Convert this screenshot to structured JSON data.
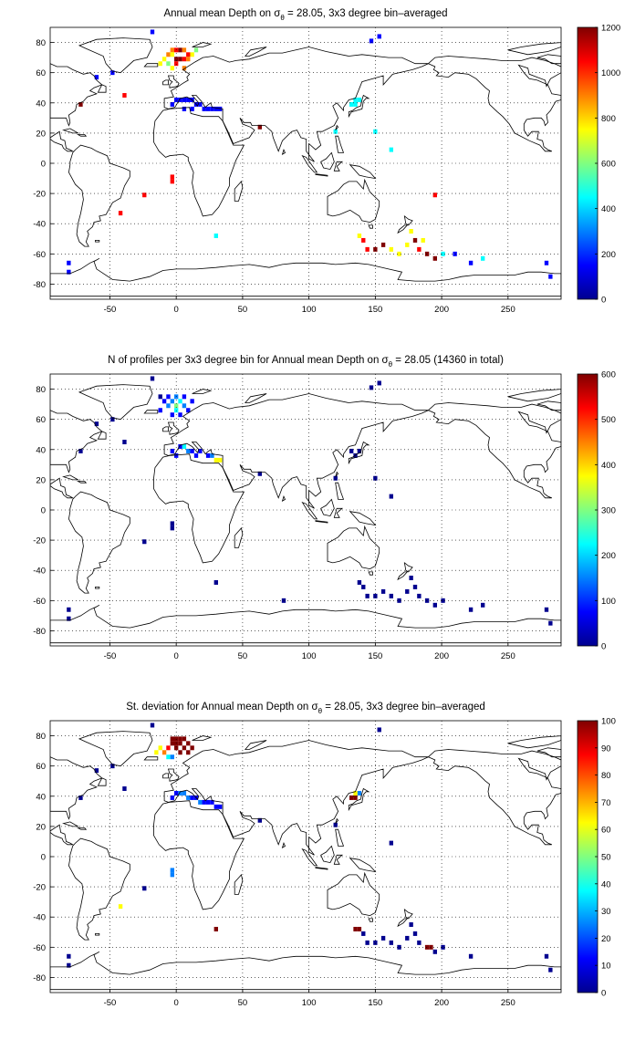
{
  "colormap": [
    "#00008f",
    "#0000ff",
    "#0080ff",
    "#00ffff",
    "#80ff80",
    "#ffff00",
    "#ff8000",
    "#ff0000",
    "#800000"
  ],
  "land_color": "#ffffff",
  "coast_color": "#000000",
  "shared_axes": {
    "xlim": [
      -95,
      290
    ],
    "ylim": [
      -90,
      90
    ],
    "xticks": [
      -50,
      0,
      50,
      100,
      150,
      200,
      250
    ],
    "yticks": [
      -80,
      -60,
      -40,
      -20,
      0,
      20,
      40,
      60,
      80
    ],
    "grid": "dotted"
  },
  "chart_data": [
    {
      "type": "heatmap",
      "title": "Annual mean Depth on σθ = 28.05, 3x3 degree bin–averaged",
      "title_parts": [
        "Annual mean Depth on ",
        "σ",
        "θ",
        " = 28.05, 3x3 degree bin–averaged"
      ],
      "clim": [
        0,
        1200
      ],
      "colorbar_ticks": [
        0,
        200,
        400,
        600,
        800,
        1000,
        1200
      ],
      "cells": [
        {
          "lon": -3,
          "lat": 75,
          "v": 950
        },
        {
          "lon": 0,
          "lat": 75,
          "v": 1100
        },
        {
          "lon": 3,
          "lat": 75,
          "v": 1150
        },
        {
          "lon": 6,
          "lat": 75,
          "v": 900
        },
        {
          "lon": 9,
          "lat": 72,
          "v": 1000
        },
        {
          "lon": -6,
          "lat": 72,
          "v": 850
        },
        {
          "lon": -3,
          "lat": 72,
          "v": 700
        },
        {
          "lon": 0,
          "lat": 69,
          "v": 1200
        },
        {
          "lon": 3,
          "lat": 69,
          "v": 1200
        },
        {
          "lon": 6,
          "lat": 69,
          "v": 1100
        },
        {
          "lon": 9,
          "lat": 69,
          "v": 900
        },
        {
          "lon": -9,
          "lat": 69,
          "v": 750
        },
        {
          "lon": -12,
          "lat": 66,
          "v": 800
        },
        {
          "lon": -6,
          "lat": 66,
          "v": 650
        },
        {
          "lon": 0,
          "lat": 66,
          "v": 1000
        },
        {
          "lon": 6,
          "lat": 63,
          "v": 850
        },
        {
          "lon": -3,
          "lat": 63,
          "v": 700
        },
        {
          "lon": 12,
          "lat": 72,
          "v": 800
        },
        {
          "lon": 15,
          "lat": 75,
          "v": 650
        },
        {
          "lon": 0,
          "lat": 42,
          "v": 100
        },
        {
          "lon": 3,
          "lat": 42,
          "v": 100
        },
        {
          "lon": 6,
          "lat": 42,
          "v": 120
        },
        {
          "lon": 9,
          "lat": 42,
          "v": 100
        },
        {
          "lon": 12,
          "lat": 42,
          "v": 100
        },
        {
          "lon": 15,
          "lat": 39,
          "v": 100
        },
        {
          "lon": 18,
          "lat": 39,
          "v": 110
        },
        {
          "lon": 21,
          "lat": 36,
          "v": 100
        },
        {
          "lon": 24,
          "lat": 36,
          "v": 100
        },
        {
          "lon": 27,
          "lat": 36,
          "v": 100
        },
        {
          "lon": 30,
          "lat": 36,
          "v": 100
        },
        {
          "lon": 33,
          "lat": 36,
          "v": 100
        },
        {
          "lon": -3,
          "lat": 39,
          "v": 100
        },
        {
          "lon": 6,
          "lat": 36,
          "v": 100
        },
        {
          "lon": 12,
          "lat": 36,
          "v": 100
        },
        {
          "lon": 132,
          "lat": 39,
          "v": 380
        },
        {
          "lon": 135,
          "lat": 39,
          "v": 400
        },
        {
          "lon": 138,
          "lat": 42,
          "v": 380
        },
        {
          "lon": 135,
          "lat": 42,
          "v": 400
        },
        {
          "lon": -48,
          "lat": 60,
          "v": 100
        },
        {
          "lon": -60,
          "lat": 57,
          "v": 100
        },
        {
          "lon": -72,
          "lat": 39,
          "v": 1150
        },
        {
          "lon": -39,
          "lat": 45,
          "v": 1100
        },
        {
          "lon": 63,
          "lat": 24,
          "v": 1150
        },
        {
          "lon": 153,
          "lat": 84,
          "v": 100
        },
        {
          "lon": 147,
          "lat": 81,
          "v": 100
        },
        {
          "lon": -18,
          "lat": 87,
          "v": 100
        },
        {
          "lon": 120,
          "lat": 21,
          "v": 500
        },
        {
          "lon": 150,
          "lat": 21,
          "v": 500
        },
        {
          "lon": 162,
          "lat": 9,
          "v": 400
        },
        {
          "lon": -3,
          "lat": -9,
          "v": 1100
        },
        {
          "lon": -3,
          "lat": -12,
          "v": 1100
        },
        {
          "lon": -24,
          "lat": -21,
          "v": 1100
        },
        {
          "lon": -42,
          "lat": -33,
          "v": 1100
        },
        {
          "lon": 30,
          "lat": -48,
          "v": 500
        },
        {
          "lon": 195,
          "lat": -21,
          "v": 1100
        },
        {
          "lon": 138,
          "lat": -48,
          "v": 700
        },
        {
          "lon": 141,
          "lat": -51,
          "v": 1000
        },
        {
          "lon": 144,
          "lat": -57,
          "v": 1100
        },
        {
          "lon": 150,
          "lat": -57,
          "v": 1150
        },
        {
          "lon": 156,
          "lat": -54,
          "v": 1200
        },
        {
          "lon": 162,
          "lat": -57,
          "v": 800
        },
        {
          "lon": 168,
          "lat": -60,
          "v": 750
        },
        {
          "lon": 174,
          "lat": -54,
          "v": 700
        },
        {
          "lon": 180,
          "lat": -51,
          "v": 1150
        },
        {
          "lon": 183,
          "lat": -57,
          "v": 1100
        },
        {
          "lon": 189,
          "lat": -60,
          "v": 1200
        },
        {
          "lon": 195,
          "lat": -63,
          "v": 1150
        },
        {
          "lon": 201,
          "lat": -60,
          "v": 400
        },
        {
          "lon": 210,
          "lat": -60,
          "v": 100
        },
        {
          "lon": 222,
          "lat": -66,
          "v": 100
        },
        {
          "lon": 231,
          "lat": -63,
          "v": 500
        },
        {
          "lon": -81,
          "lat": -66,
          "v": 100
        },
        {
          "lon": -81,
          "lat": -72,
          "v": 100
        },
        {
          "lon": 279,
          "lat": -66,
          "v": 100
        },
        {
          "lon": 282,
          "lat": -75,
          "v": 100
        },
        {
          "lon": 177,
          "lat": -45,
          "v": 800
        },
        {
          "lon": 186,
          "lat": -51,
          "v": 700
        }
      ]
    },
    {
      "type": "heatmap",
      "title": "N of profiles per 3x3 degree bin for Annual mean Depth on σθ = 28.05 (14360 in total)",
      "title_parts": [
        "N of profiles per 3x3 degree bin for Annual mean Depth on ",
        "σ",
        "θ",
        " = 28.05 (14360 in total)"
      ],
      "clim": [
        0,
        600
      ],
      "colorbar_ticks": [
        0,
        100,
        200,
        300,
        400,
        500,
        600
      ],
      "cells": [
        {
          "lon": -12,
          "lat": 75,
          "v": 30
        },
        {
          "lon": -6,
          "lat": 75,
          "v": 60
        },
        {
          "lon": 0,
          "lat": 75,
          "v": 120
        },
        {
          "lon": 6,
          "lat": 75,
          "v": 80
        },
        {
          "lon": 12,
          "lat": 72,
          "v": 60
        },
        {
          "lon": -9,
          "lat": 72,
          "v": 90
        },
        {
          "lon": -3,
          "lat": 72,
          "v": 180
        },
        {
          "lon": 3,
          "lat": 72,
          "v": 220
        },
        {
          "lon": 0,
          "lat": 69,
          "v": 280
        },
        {
          "lon": 6,
          "lat": 69,
          "v": 150
        },
        {
          "lon": -6,
          "lat": 69,
          "v": 130
        },
        {
          "lon": -12,
          "lat": 66,
          "v": 70
        },
        {
          "lon": 0,
          "lat": 66,
          "v": 200
        },
        {
          "lon": 9,
          "lat": 66,
          "v": 90
        },
        {
          "lon": -3,
          "lat": 63,
          "v": 100
        },
        {
          "lon": 3,
          "lat": 63,
          "v": 60
        },
        {
          "lon": 3,
          "lat": 42,
          "v": 80
        },
        {
          "lon": 6,
          "lat": 42,
          "v": 200
        },
        {
          "lon": 9,
          "lat": 39,
          "v": 120
        },
        {
          "lon": 12,
          "lat": 39,
          "v": 60
        },
        {
          "lon": 18,
          "lat": 39,
          "v": 90
        },
        {
          "lon": 24,
          "lat": 36,
          "v": 60
        },
        {
          "lon": 27,
          "lat": 36,
          "v": 180
        },
        {
          "lon": 30,
          "lat": 33,
          "v": 350
        },
        {
          "lon": 33,
          "lat": 33,
          "v": 380
        },
        {
          "lon": 0,
          "lat": 36,
          "v": 60
        },
        {
          "lon": -3,
          "lat": 39,
          "v": 40
        },
        {
          "lon": 15,
          "lat": 36,
          "v": 40
        },
        {
          "lon": 132,
          "lat": 39,
          "v": 20
        },
        {
          "lon": 135,
          "lat": 36,
          "v": 20
        },
        {
          "lon": 138,
          "lat": 39,
          "v": 20
        },
        {
          "lon": -48,
          "lat": 60,
          "v": 10
        },
        {
          "lon": -60,
          "lat": 57,
          "v": 10
        },
        {
          "lon": -72,
          "lat": 39,
          "v": 10
        },
        {
          "lon": -39,
          "lat": 45,
          "v": 10
        },
        {
          "lon": 63,
          "lat": 24,
          "v": 10
        },
        {
          "lon": 153,
          "lat": 84,
          "v": 10
        },
        {
          "lon": 147,
          "lat": 81,
          "v": 10
        },
        {
          "lon": -18,
          "lat": 87,
          "v": 10
        },
        {
          "lon": 120,
          "lat": 21,
          "v": 10
        },
        {
          "lon": 150,
          "lat": 21,
          "v": 10
        },
        {
          "lon": 162,
          "lat": 9,
          "v": 10
        },
        {
          "lon": -3,
          "lat": -9,
          "v": 10
        },
        {
          "lon": -3,
          "lat": -12,
          "v": 10
        },
        {
          "lon": -24,
          "lat": -21,
          "v": 10
        },
        {
          "lon": 30,
          "lat": -48,
          "v": 10
        },
        {
          "lon": 138,
          "lat": -48,
          "v": 10
        },
        {
          "lon": 141,
          "lat": -51,
          "v": 10
        },
        {
          "lon": 144,
          "lat": -57,
          "v": 10
        },
        {
          "lon": 150,
          "lat": -57,
          "v": 10
        },
        {
          "lon": 156,
          "lat": -54,
          "v": 10
        },
        {
          "lon": 162,
          "lat": -57,
          "v": 10
        },
        {
          "lon": 168,
          "lat": -60,
          "v": 10
        },
        {
          "lon": 174,
          "lat": -54,
          "v": 10
        },
        {
          "lon": 180,
          "lat": -51,
          "v": 10
        },
        {
          "lon": 183,
          "lat": -57,
          "v": 10
        },
        {
          "lon": 189,
          "lat": -60,
          "v": 10
        },
        {
          "lon": 195,
          "lat": -63,
          "v": 10
        },
        {
          "lon": 201,
          "lat": -60,
          "v": 10
        },
        {
          "lon": 222,
          "lat": -66,
          "v": 10
        },
        {
          "lon": 231,
          "lat": -63,
          "v": 10
        },
        {
          "lon": -81,
          "lat": -66,
          "v": 10
        },
        {
          "lon": -81,
          "lat": -72,
          "v": 10
        },
        {
          "lon": 279,
          "lat": -66,
          "v": 10
        },
        {
          "lon": 282,
          "lat": -75,
          "v": 10
        },
        {
          "lon": 177,
          "lat": -45,
          "v": 10
        },
        {
          "lon": 81,
          "lat": -60,
          "v": 10
        }
      ]
    },
    {
      "type": "heatmap",
      "title": "St. deviation for Annual mean Depth on σθ = 28.05, 3x3 degree bin–averaged",
      "title_parts": [
        "St. deviation for Annual mean Depth on ",
        "σ",
        "θ",
        " = 28.05, 3x3 degree bin–averaged"
      ],
      "clim": [
        0,
        100
      ],
      "colorbar_ticks": [
        0,
        10,
        20,
        30,
        40,
        50,
        60,
        70,
        80,
        90,
        100
      ],
      "cells": [
        {
          "lon": -3,
          "lat": 78,
          "v": 100
        },
        {
          "lon": 0,
          "lat": 78,
          "v": 100
        },
        {
          "lon": 3,
          "lat": 78,
          "v": 100
        },
        {
          "lon": 6,
          "lat": 78,
          "v": 100
        },
        {
          "lon": 9,
          "lat": 75,
          "v": 100
        },
        {
          "lon": 0,
          "lat": 75,
          "v": 100
        },
        {
          "lon": 3,
          "lat": 75,
          "v": 100
        },
        {
          "lon": -3,
          "lat": 75,
          "v": 100
        },
        {
          "lon": 6,
          "lat": 72,
          "v": 100
        },
        {
          "lon": 0,
          "lat": 72,
          "v": 100
        },
        {
          "lon": 3,
          "lat": 69,
          "v": 100
        },
        {
          "lon": 9,
          "lat": 69,
          "v": 100
        },
        {
          "lon": -6,
          "lat": 72,
          "v": 85
        },
        {
          "lon": -9,
          "lat": 69,
          "v": 70
        },
        {
          "lon": -15,
          "lat": 69,
          "v": 65
        },
        {
          "lon": -12,
          "lat": 72,
          "v": 60
        },
        {
          "lon": 12,
          "lat": 72,
          "v": 100
        },
        {
          "lon": -6,
          "lat": 66,
          "v": 40
        },
        {
          "lon": -3,
          "lat": 66,
          "v": 30
        },
        {
          "lon": 0,
          "lat": 42,
          "v": 18
        },
        {
          "lon": 3,
          "lat": 42,
          "v": 22
        },
        {
          "lon": 6,
          "lat": 42,
          "v": 25
        },
        {
          "lon": 9,
          "lat": 39,
          "v": 20
        },
        {
          "lon": 12,
          "lat": 39,
          "v": 15
        },
        {
          "lon": 15,
          "lat": 39,
          "v": 18
        },
        {
          "lon": 18,
          "lat": 36,
          "v": 22
        },
        {
          "lon": 21,
          "lat": 36,
          "v": 16
        },
        {
          "lon": 24,
          "lat": 36,
          "v": 12
        },
        {
          "lon": 27,
          "lat": 36,
          "v": 14
        },
        {
          "lon": 30,
          "lat": 33,
          "v": 12
        },
        {
          "lon": 33,
          "lat": 33,
          "v": 10
        },
        {
          "lon": -3,
          "lat": 39,
          "v": 15
        },
        {
          "lon": 132,
          "lat": 39,
          "v": 100
        },
        {
          "lon": 135,
          "lat": 39,
          "v": 95
        },
        {
          "lon": 138,
          "lat": 42,
          "v": 30
        },
        {
          "lon": 135,
          "lat": 42,
          "v": 60
        },
        {
          "lon": -48,
          "lat": 60,
          "v": 5
        },
        {
          "lon": -60,
          "lat": 57,
          "v": 5
        },
        {
          "lon": -72,
          "lat": 39,
          "v": 5
        },
        {
          "lon": -39,
          "lat": 45,
          "v": 5
        },
        {
          "lon": 63,
          "lat": 24,
          "v": 5
        },
        {
          "lon": 153,
          "lat": 84,
          "v": 5
        },
        {
          "lon": -18,
          "lat": 87,
          "v": 5
        },
        {
          "lon": 120,
          "lat": 21,
          "v": 5
        },
        {
          "lon": 162,
          "lat": 9,
          "v": 5
        },
        {
          "lon": -3,
          "lat": -9,
          "v": 20
        },
        {
          "lon": -3,
          "lat": -12,
          "v": 20
        },
        {
          "lon": -24,
          "lat": -21,
          "v": 5
        },
        {
          "lon": -42,
          "lat": -33,
          "v": 60
        },
        {
          "lon": 30,
          "lat": -48,
          "v": 100
        },
        {
          "lon": 138,
          "lat": -48,
          "v": 100
        },
        {
          "lon": 135,
          "lat": -48,
          "v": 100
        },
        {
          "lon": 141,
          "lat": -51,
          "v": 5
        },
        {
          "lon": 144,
          "lat": -57,
          "v": 5
        },
        {
          "lon": 150,
          "lat": -57,
          "v": 5
        },
        {
          "lon": 156,
          "lat": -54,
          "v": 5
        },
        {
          "lon": 162,
          "lat": -57,
          "v": 5
        },
        {
          "lon": 168,
          "lat": -60,
          "v": 5
        },
        {
          "lon": 174,
          "lat": -54,
          "v": 5
        },
        {
          "lon": 180,
          "lat": -51,
          "v": 5
        },
        {
          "lon": 183,
          "lat": -57,
          "v": 5
        },
        {
          "lon": 189,
          "lat": -60,
          "v": 100
        },
        {
          "lon": 192,
          "lat": -60,
          "v": 100
        },
        {
          "lon": 195,
          "lat": -63,
          "v": 5
        },
        {
          "lon": 201,
          "lat": -60,
          "v": 5
        },
        {
          "lon": 222,
          "lat": -66,
          "v": 5
        },
        {
          "lon": -81,
          "lat": -66,
          "v": 5
        },
        {
          "lon": -81,
          "lat": -72,
          "v": 5
        },
        {
          "lon": 279,
          "lat": -66,
          "v": 5
        },
        {
          "lon": 282,
          "lat": -75,
          "v": 5
        },
        {
          "lon": 177,
          "lat": -45,
          "v": 5
        }
      ]
    }
  ]
}
